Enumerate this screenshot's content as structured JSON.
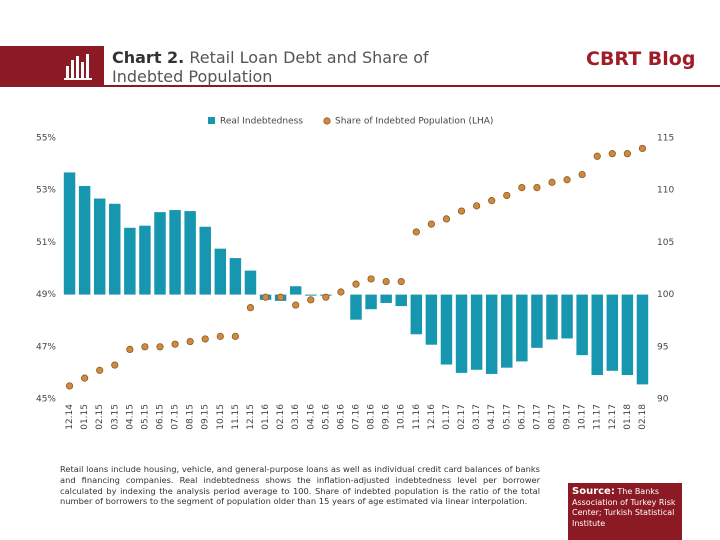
{
  "header": {
    "title_label": "Chart 2.",
    "title": "Retail Loan Debt and Share of Indebted Population",
    "brand": "CBRT Blog"
  },
  "chart_data": {
    "type": "bar_dot",
    "categories": [
      "12.14",
      "01.15",
      "02.15",
      "03.15",
      "04.15",
      "05.15",
      "06.15",
      "07.15",
      "08.15",
      "09.15",
      "10.15",
      "11.15",
      "12.15",
      "01.16",
      "02.16",
      "03.16",
      "04.16",
      "05.16",
      "06.16",
      "07.16",
      "08.16",
      "09.16",
      "10.16",
      "11.16",
      "12.16",
      "01.17",
      "02.17",
      "03.17",
      "04.17",
      "05.17",
      "06.17",
      "07.17",
      "08.17",
      "09.17",
      "10.17",
      "11.17",
      "12.17",
      "01.18",
      "02.18"
    ],
    "series": [
      {
        "name": "Real Indebtedness",
        "color": "#1796b0",
        "axis": "y2",
        "values": [
          111.7,
          110.4,
          109.2,
          108.7,
          106.4,
          106.6,
          107.9,
          108.1,
          108.0,
          106.5,
          104.4,
          103.5,
          102.3,
          99.5,
          99.4,
          100.8,
          99.9,
          99.9,
          100.0,
          97.6,
          98.6,
          99.2,
          98.9,
          96.2,
          95.2,
          93.3,
          92.5,
          92.8,
          92.4,
          93.0,
          93.6,
          94.9,
          95.7,
          95.8,
          94.2,
          92.3,
          92.7,
          92.3,
          91.4
        ]
      },
      {
        "name": "Share of Indebted Population (LHA)",
        "color": "#cf8a3e",
        "axis": "y",
        "values": [
          45.5,
          45.8,
          46.1,
          46.3,
          46.9,
          47.0,
          47.0,
          47.1,
          47.2,
          47.3,
          47.4,
          47.4,
          48.5,
          48.9,
          48.9,
          48.6,
          48.8,
          48.9,
          49.1,
          49.4,
          49.6,
          49.5,
          49.5,
          51.4,
          51.7,
          51.9,
          52.2,
          52.4,
          52.6,
          52.8,
          53.1,
          53.1,
          53.3,
          53.4,
          53.6,
          54.3,
          54.4,
          54.4,
          54.6
        ]
      }
    ],
    "baseline": 100,
    "ylim": [
      45,
      55
    ],
    "yticks": [
      {
        "value": 45,
        "label": "45%"
      },
      {
        "value": 47,
        "label": "47%"
      },
      {
        "value": 49,
        "label": "49%"
      },
      {
        "value": 51,
        "label": "51%"
      },
      {
        "value": 53,
        "label": "53%"
      },
      {
        "value": 55,
        "label": "55%"
      }
    ],
    "y2lim": [
      90,
      115
    ],
    "y2ticks": [
      90,
      95,
      100,
      105,
      110,
      115
    ],
    "legend": "top"
  },
  "footer": {
    "note": "Retail loans include housing, vehicle, and general-purpose loans as well as individual credit card balances of banks and financing companies. Real indebtedness shows the inflation-adjusted indebtedness level per borrower calculated by indexing the analysis period average to 100. Share of indebted population is the ratio of the total number of borrowers to the segment of population older than 15 years of age estimated via linear interpolation.",
    "source_label": "Source:",
    "source": "The Banks Association of Turkey Risk Center; Turkish Statistical Institute"
  }
}
